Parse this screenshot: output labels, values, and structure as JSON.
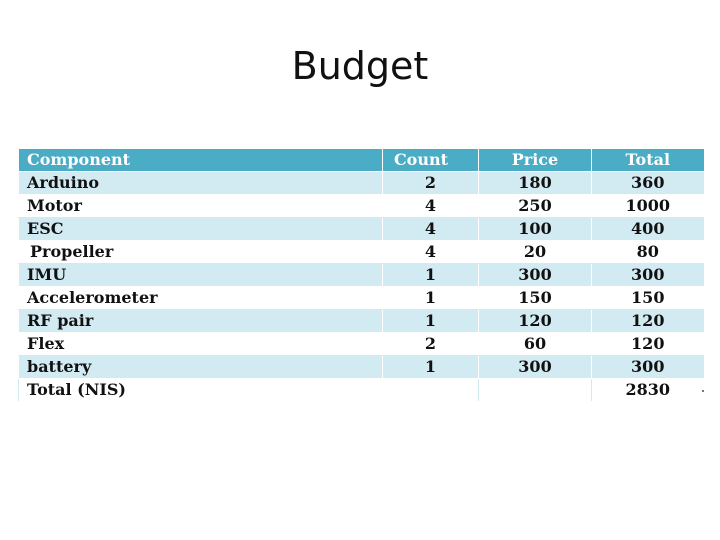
{
  "title": "Budget",
  "table": {
    "headers": [
      "Component",
      "Count",
      "Price",
      "Total"
    ],
    "rows": [
      {
        "component": "Arduino",
        "count": "2",
        "price": "180",
        "total": "360"
      },
      {
        "component": "Motor",
        "count": "4",
        "price": "250",
        "total": "1000"
      },
      {
        "component": "ESC",
        "count": "4",
        "price": "100",
        "total": "400"
      },
      {
        "component": "Propeller",
        "count": "4",
        "price": "20",
        "total": "80"
      },
      {
        "component": "IMU",
        "count": "1",
        "price": "300",
        "total": "300"
      },
      {
        "component": "Accelerometer",
        "count": "1",
        "price": "150",
        "total": "150"
      },
      {
        "component": "RF pair",
        "count": "1",
        "price": "120",
        "total": "120"
      },
      {
        "component": "Flex",
        "count": "2",
        "price": "60",
        "total": "120"
      },
      {
        "component": "battery",
        "count": "1",
        "price": "300",
        "total": "300"
      }
    ],
    "footer": {
      "label": "Total (NIS)",
      "count": "",
      "price": "",
      "total": "2830"
    }
  },
  "colors": {
    "header": "#4bacc6",
    "band": "#d2eaf1"
  }
}
